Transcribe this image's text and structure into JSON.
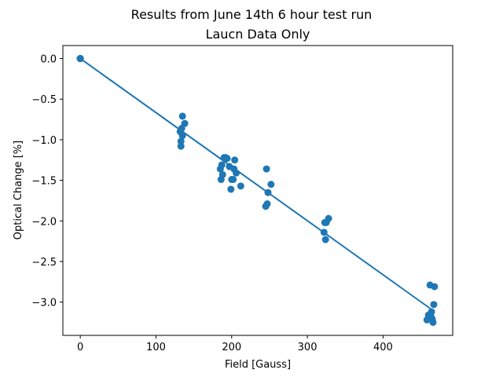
{
  "chart_data": {
    "type": "scatter",
    "title": "Results from June 14th 6 hour test run",
    "subtitle": "Laucn Data Only",
    "xlabel": "Field [Gauss]",
    "ylabel": "Optical Change [%]",
    "xlim": [
      -23,
      492
    ],
    "ylim": [
      -3.41,
      0.16
    ],
    "xticks": [
      0,
      100,
      200,
      300,
      400
    ],
    "yticks": [
      0.0,
      -0.5,
      -1.0,
      -1.5,
      -2.0,
      -2.5,
      -3.0
    ],
    "grid": false,
    "color": "#1f77b4",
    "series": [
      {
        "x": [
          0,
          0,
          0,
          0,
          0,
          132,
          133,
          133,
          134,
          135,
          135,
          138,
          185,
          186,
          187,
          188,
          190,
          192,
          194,
          197,
          199,
          200,
          202,
          203,
          204,
          206,
          212,
          245,
          246,
          247,
          248,
          252,
          322,
          323,
          324,
          325,
          328,
          458,
          460,
          462,
          463,
          464,
          465,
          466,
          467,
          468
        ],
        "y": [
          0.0,
          0.0,
          0.0,
          0.0,
          0.0,
          -0.9,
          -1.08,
          -1.02,
          -0.86,
          -0.71,
          -0.95,
          -0.8,
          -1.36,
          -1.49,
          -1.31,
          -1.43,
          -1.22,
          -1.22,
          -1.23,
          -1.33,
          -1.61,
          -1.49,
          -1.49,
          -1.36,
          -1.25,
          -1.41,
          -1.57,
          -1.82,
          -1.36,
          -1.79,
          -1.65,
          -1.55,
          -2.14,
          -2.02,
          -2.23,
          -2.02,
          -1.97,
          -3.22,
          -3.16,
          -2.79,
          -3.17,
          -3.12,
          -3.21,
          -3.25,
          -3.03,
          -2.81
        ]
      }
    ],
    "fit_line": {
      "slope": -0.00666,
      "intercept": 0.0,
      "x": [
        0,
        466
      ]
    }
  }
}
